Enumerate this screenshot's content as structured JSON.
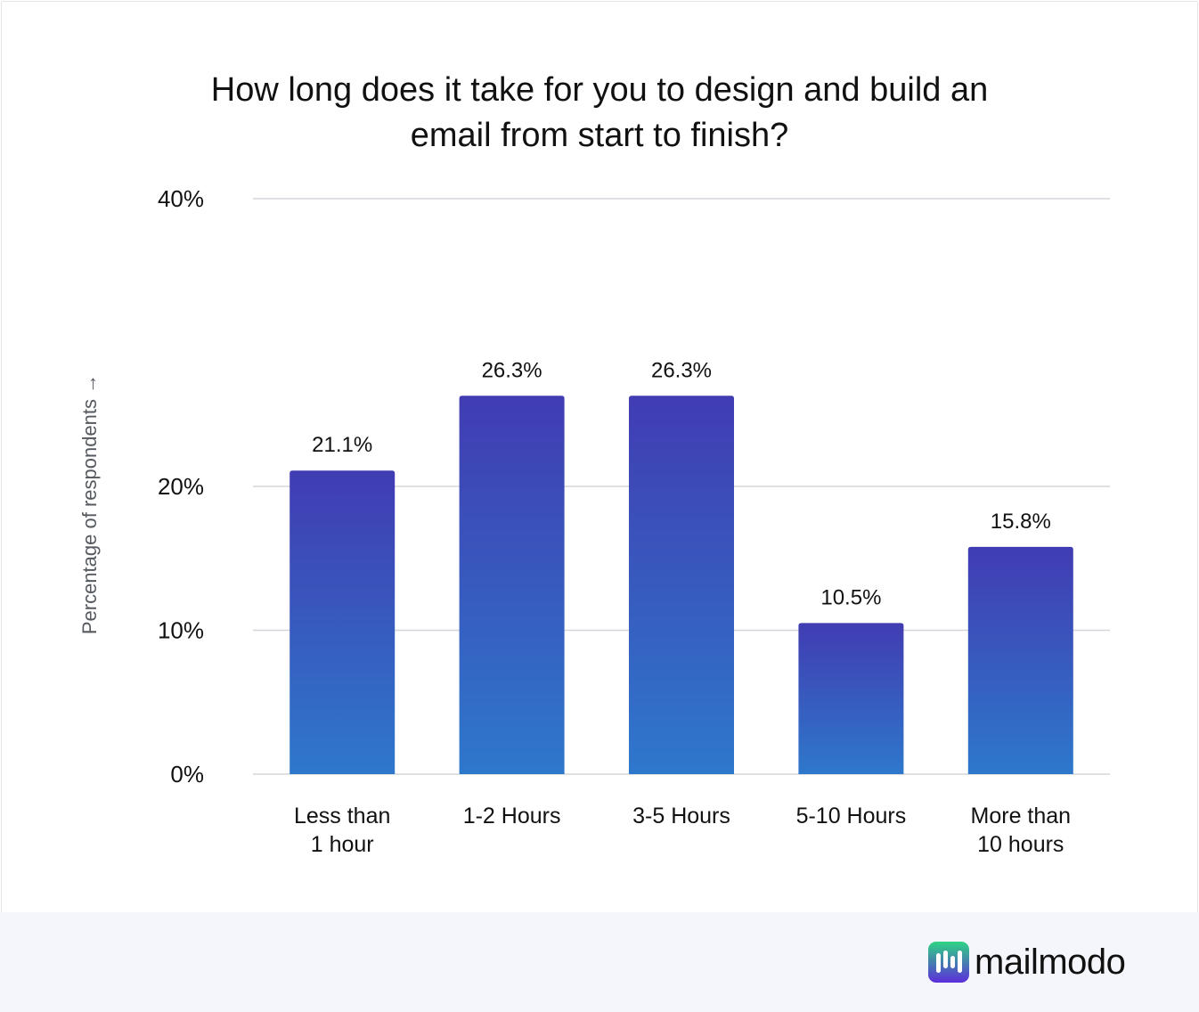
{
  "chart_data": {
    "type": "bar",
    "title_lines": [
      "How long does it take for you to design and build an",
      "email from start to finish?"
    ],
    "ylabel": "Percentage of respondents →",
    "xlabel": "",
    "categories": [
      [
        "Less than",
        "1 hour"
      ],
      [
        "1-2 Hours"
      ],
      [
        "3-5 Hours"
      ],
      [
        "5-10 Hours"
      ],
      [
        "More than",
        "10 hours"
      ]
    ],
    "values": [
      21.1,
      26.3,
      26.3,
      10.5,
      15.8
    ],
    "value_labels": [
      "21.1%",
      "26.3%",
      "26.3%",
      "10.5%",
      "15.8%"
    ],
    "yticks": [
      0,
      10,
      20,
      40
    ],
    "ytick_labels": [
      "0%",
      "10%",
      "20%",
      "40%"
    ],
    "ylim": [
      0,
      40
    ],
    "grid": true,
    "colors": {
      "bar_top": "#413cb2",
      "bar_bottom": "#2e78cc",
      "grid": "#d4d6db",
      "text": "#111111"
    }
  },
  "brand": {
    "name": "mailmodo",
    "colors": {
      "mark_top": "#2fd483",
      "mark_bottom": "#5b2ddb"
    }
  }
}
